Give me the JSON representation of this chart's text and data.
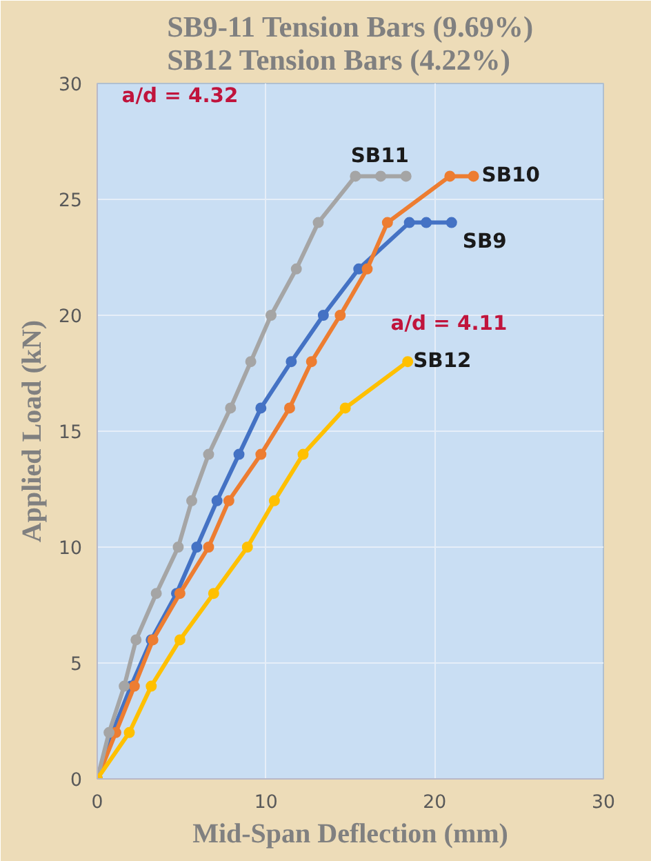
{
  "chart_data": {
    "type": "line",
    "title": "SB9-11 Tension Bars (9.69%)\nSB12 Tension Bars (4.22%)",
    "xlabel": "Mid-Span Deflection (mm)",
    "ylabel": "Applied Load (kN)",
    "xlim": [
      0,
      30
    ],
    "xticks": [
      0,
      10,
      20,
      30
    ],
    "ylim": [
      0,
      30
    ],
    "yticks": [
      0,
      5,
      10,
      15,
      20,
      25,
      30
    ],
    "grid": true,
    "marker": "circle",
    "line_style": "solid",
    "series": [
      {
        "name": "SB9",
        "color": "#4472c4",
        "x": [
          0,
          0.9,
          2.0,
          3.2,
          4.7,
          5.9,
          7.1,
          8.4,
          9.7,
          11.5,
          13.4,
          15.5,
          18.5,
          19.5,
          21.0
        ],
        "values": [
          0,
          2,
          4,
          6,
          8,
          10,
          12,
          14,
          16,
          18,
          20,
          22,
          24,
          24,
          24
        ]
      },
      {
        "name": "SB10",
        "color": "#ed7d31",
        "x": [
          0,
          1.1,
          2.2,
          3.3,
          4.9,
          6.6,
          7.8,
          9.7,
          11.4,
          12.7,
          14.4,
          16.0,
          17.2,
          20.9,
          22.3
        ],
        "values": [
          0,
          2,
          4,
          6,
          8,
          10,
          12,
          14,
          16,
          18,
          20,
          22,
          24,
          26,
          26
        ]
      },
      {
        "name": "SB11",
        "color": "#a5a5a5",
        "x": [
          0,
          0.7,
          1.6,
          2.3,
          3.5,
          4.8,
          5.6,
          6.6,
          7.9,
          9.1,
          10.3,
          11.8,
          13.1,
          15.3,
          16.8,
          18.3
        ],
        "values": [
          0,
          2,
          4,
          6,
          8,
          10,
          12,
          14,
          16,
          18,
          20,
          22,
          24,
          26,
          26,
          26
        ]
      },
      {
        "name": "SB12",
        "color": "#ffc000",
        "x": [
          0,
          1.9,
          3.2,
          4.9,
          6.9,
          8.9,
          10.5,
          12.2,
          14.7,
          18.4
        ],
        "values": [
          0,
          2,
          4,
          6,
          8,
          10,
          12,
          14,
          16,
          18
        ]
      }
    ],
    "annotations": [
      "a/d = 4.32",
      "a/d = 4.11"
    ]
  }
}
